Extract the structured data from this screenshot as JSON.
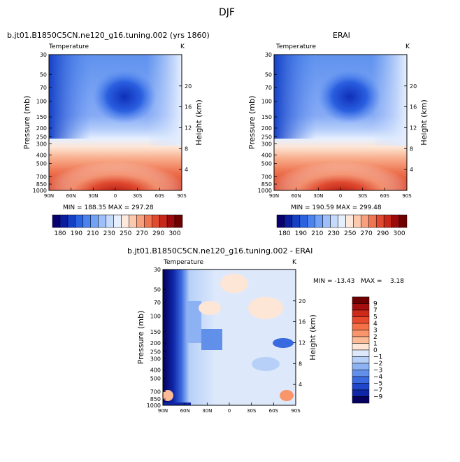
{
  "figure": {
    "season": "DJF"
  },
  "panels": [
    {
      "id": "model",
      "header": "b.jt01.B1850C5CN.ne120_g16.tuning.002 (yrs 1860)",
      "variable": "Temperature",
      "units": "K",
      "stats": "MIN = 188.35   MAX = 297.28"
    },
    {
      "id": "obs",
      "header": "ERAI",
      "variable": "Temperature",
      "units": "K",
      "stats": "MIN = 190.59   MAX = 299.48"
    },
    {
      "id": "diff",
      "header": "b.jt01.B1850C5CN.ne120_g16.tuning.002 - ERAI",
      "variable": "Temperature",
      "units": "K",
      "stats": "MIN = -13.43   MAX =    3.18"
    }
  ],
  "axes": {
    "ylabel": "Pressure (mb)",
    "y2label": "Height (km)",
    "pressure_ticks": [
      "30",
      "50",
      "70",
      "100",
      "150",
      "200",
      "250",
      "300",
      "400",
      "500",
      "700",
      "850",
      "1000"
    ],
    "height_ticks": [
      "20",
      "16",
      "12",
      "8",
      "4"
    ],
    "lat_ticks": [
      "90N",
      "60N",
      "30N",
      "0",
      "30S",
      "60S",
      "90S"
    ]
  },
  "colorbars": {
    "abs_labels": [
      "180",
      "190",
      "210",
      "230",
      "250",
      "270",
      "290",
      "300"
    ],
    "diff_labels": [
      "9",
      "7",
      "5",
      "4",
      "3",
      "2",
      "1",
      "0",
      "−1",
      "−2",
      "−3",
      "−4",
      "−5",
      "−7",
      "−9"
    ],
    "abs_colors": [
      "#08006e",
      "#0b1e9e",
      "#1540c6",
      "#2a62e0",
      "#4a82ee",
      "#72a2f6",
      "#9ec0fa",
      "#c6dafc",
      "#e6effe",
      "#fde9dc",
      "#fbc9ae",
      "#f6a07e",
      "#ee7552",
      "#e04a30",
      "#c8281a",
      "#9b0b0b",
      "#6e0000"
    ],
    "diff_colors": [
      "#6e0000",
      "#a50f0f",
      "#cd2a1a",
      "#e84a2e",
      "#f47047",
      "#f9956b",
      "#fbbb96",
      "#fde6d6",
      "#dde9fb",
      "#b7d0f8",
      "#8cb2f3",
      "#6190eb",
      "#3a6ae0",
      "#1f47cc",
      "#0f26a8",
      "#06005e"
    ]
  },
  "chart_data": [
    {
      "type": "heatmap",
      "title": "b.jt01.B1850C5CN.ne120_g16.tuning.002 (yrs 1860)",
      "xlabel": "",
      "ylabel": "Pressure (mb)",
      "x": [
        "90N",
        "60N",
        "30N",
        "0",
        "30S",
        "60S",
        "90S"
      ],
      "y_pressure": [
        30,
        50,
        70,
        100,
        150,
        200,
        250,
        300,
        400,
        500,
        700,
        850,
        1000
      ],
      "min": 188.35,
      "max": 297.28,
      "units": "K"
    },
    {
      "type": "heatmap",
      "title": "ERAI",
      "xlabel": "",
      "ylabel": "Pressure (mb)",
      "x": [
        "90N",
        "60N",
        "30N",
        "0",
        "30S",
        "60S",
        "90S"
      ],
      "y_pressure": [
        30,
        50,
        70,
        100,
        150,
        200,
        250,
        300,
        400,
        500,
        700,
        850,
        1000
      ],
      "min": 190.59,
      "max": 299.48,
      "units": "K"
    },
    {
      "type": "heatmap",
      "title": "b.jt01.B1850C5CN.ne120_g16.tuning.002 - ERAI",
      "xlabel": "",
      "ylabel": "Pressure (mb)",
      "x": [
        "90N",
        "60N",
        "30N",
        "0",
        "30S",
        "60S",
        "90S"
      ],
      "y_pressure": [
        30,
        50,
        70,
        100,
        150,
        200,
        250,
        300,
        400,
        500,
        700,
        850,
        1000
      ],
      "min": -13.43,
      "max": 3.18,
      "units": "K"
    }
  ]
}
